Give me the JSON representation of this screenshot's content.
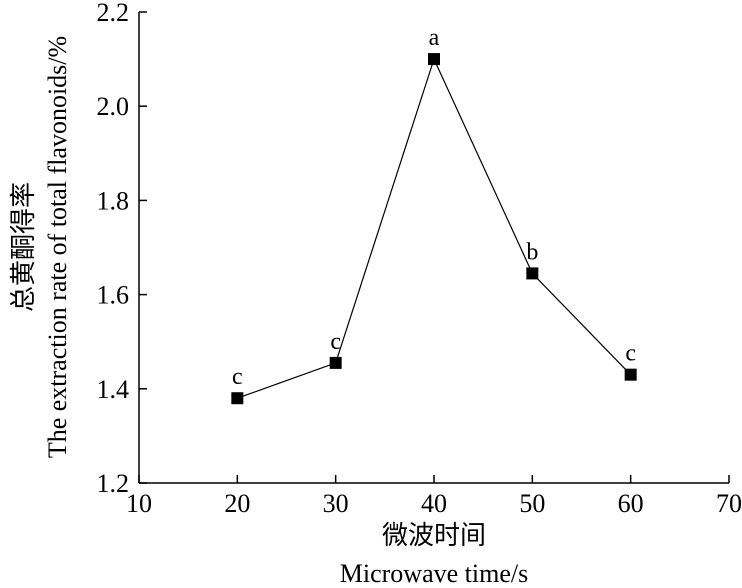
{
  "chart_data": {
    "type": "line",
    "x": [
      20,
      30,
      40,
      50,
      60
    ],
    "series": [
      {
        "values": [
          1.38,
          1.455,
          2.1,
          1.645,
          1.43
        ],
        "point_labels": [
          "c",
          "c",
          "a",
          "b",
          "c"
        ],
        "marker": "square",
        "color": "#000000"
      }
    ],
    "xlabel_cn": "微波时间",
    "xlabel": "Microwave time/s",
    "ylabel_cn": "总黄酮得率",
    "ylabel": "The extraction rate of total flavonoids/%",
    "xlim": [
      10,
      70
    ],
    "ylim": [
      1.2,
      2.2
    ],
    "xticks": [
      10,
      20,
      30,
      40,
      50,
      60,
      70
    ],
    "yticks": [
      1.2,
      1.4,
      1.6,
      1.8,
      2.0,
      2.2
    ],
    "xtick_labels": [
      "10",
      "20",
      "30",
      "40",
      "50",
      "60",
      "70"
    ],
    "ytick_labels": [
      "1.2",
      "1.4",
      "1.6",
      "1.8",
      "2.0",
      "2.2"
    ],
    "grid": false
  }
}
